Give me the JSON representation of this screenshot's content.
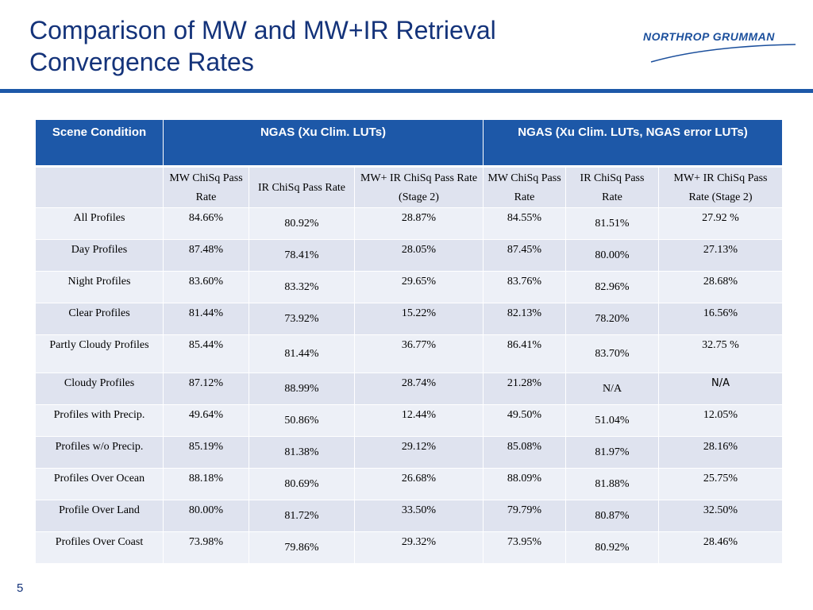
{
  "slide": {
    "title_line1": "Comparison of MW and MW+IR Retrieval",
    "title_line2": "Convergence Rates",
    "logo_text": "NORTHROP GRUMMAN",
    "page_number": "5"
  },
  "table": {
    "header": {
      "scene_condition": "Scene Condition",
      "group1": "NGAS (Xu Clim. LUTs)",
      "group2": "NGAS (Xu Clim. LUTs, NGAS error LUTs)"
    },
    "subheaders": [
      "MW ChiSq Pass Rate",
      "IR ChiSq Pass Rate",
      "MW+ IR ChiSq Pass Rate (Stage 2)",
      "MW ChiSq Pass Rate",
      "IR ChiSq Pass Rate",
      "MW+ IR ChiSq Pass Rate (Stage 2)"
    ],
    "rows": [
      {
        "label": "All Profiles",
        "v": [
          "84.66%",
          "80.92%",
          "28.87%",
          "84.55%",
          "81.51%",
          "27.92 %"
        ]
      },
      {
        "label": "Day Profiles",
        "v": [
          "87.48%",
          "78.41%",
          "28.05%",
          "87.45%",
          "80.00%",
          "27.13%"
        ]
      },
      {
        "label": "Night Profiles",
        "v": [
          "83.60%",
          "83.32%",
          "29.65%",
          "83.76%",
          "82.96%",
          "28.68%"
        ]
      },
      {
        "label": "Clear Profiles",
        "v": [
          "81.44%",
          "73.92%",
          "15.22%",
          "82.13%",
          "78.20%",
          "16.56%"
        ]
      },
      {
        "label": "Partly Cloudy Profiles",
        "v": [
          "85.44%",
          "81.44%",
          "36.77%",
          "86.41%",
          "83.70%",
          "32.75 %"
        ]
      },
      {
        "label": "Cloudy Profiles",
        "v": [
          "87.12%",
          "88.99%",
          "28.74%",
          "21.28%",
          "N/A",
          "N/A"
        ]
      },
      {
        "label": "Profiles with Precip.",
        "v": [
          "49.64%",
          "50.86%",
          "12.44%",
          "49.50%",
          "51.04%",
          "12.05%"
        ]
      },
      {
        "label": "Profiles w/o Precip.",
        "v": [
          "85.19%",
          "81.38%",
          "29.12%",
          "85.08%",
          "81.97%",
          "28.16%"
        ]
      },
      {
        "label": "Profiles Over Ocean",
        "v": [
          "88.18%",
          "80.69%",
          "26.68%",
          "88.09%",
          "81.88%",
          "25.75%"
        ]
      },
      {
        "label": "Profile Over Land",
        "v": [
          "80.00%",
          "81.72%",
          "33.50%",
          "79.79%",
          "80.87%",
          "32.50%"
        ]
      },
      {
        "label": "Profiles Over Coast",
        "v": [
          "73.98%",
          "79.86%",
          "29.32%",
          "73.95%",
          "80.92%",
          "28.46%"
        ]
      }
    ]
  }
}
